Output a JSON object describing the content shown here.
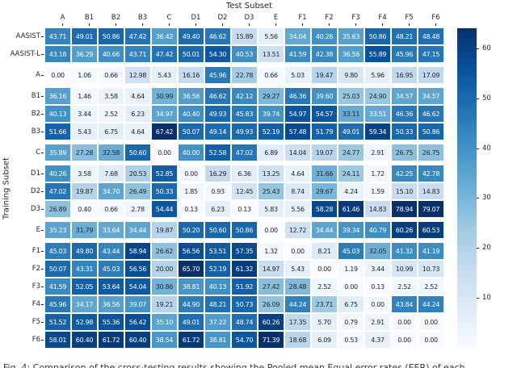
{
  "title": "Test Subset",
  "ylabel": "Training Subset",
  "caption_fragment": "Fig. 4: Comparison of the cross-testing results showing the Pooled mean Equal error rates (EER) of each",
  "colors": {
    "background": "#ffffff",
    "text_dark": "#262626",
    "text_light": "#ffffff",
    "colormap_name": "Blues",
    "cmap_stops": [
      [
        0.0,
        "#f7fbff"
      ],
      [
        0.125,
        "#deebf7"
      ],
      [
        0.25,
        "#c6dbef"
      ],
      [
        0.375,
        "#9ecae1"
      ],
      [
        0.5,
        "#6baed6"
      ],
      [
        0.625,
        "#4292c6"
      ],
      [
        0.75,
        "#2171b5"
      ],
      [
        0.875,
        "#08519c"
      ],
      [
        1.0,
        "#08306b"
      ]
    ]
  },
  "chart_data": {
    "type": "heatmap",
    "title": "Test Subset",
    "xlabel": "",
    "ylabel": "Training Subset",
    "x_categories": [
      "A",
      "B1",
      "B2",
      "B3",
      "C",
      "D1",
      "D2",
      "D3",
      "E",
      "F1",
      "F2",
      "F3",
      "F4",
      "F5",
      "F6"
    ],
    "y_categories": [
      "AASIST",
      "AASIST-L",
      "A",
      "B1",
      "B2",
      "B3",
      "C",
      "D1",
      "D2",
      "D3",
      "E",
      "F1",
      "F2",
      "F3",
      "F4",
      "F5",
      "F6"
    ],
    "row_groups": [
      2,
      1,
      3,
      1,
      3,
      1,
      6
    ],
    "values": [
      [
        43.71,
        49.01,
        50.86,
        47.42,
        36.42,
        49.4,
        46.62,
        15.89,
        5.56,
        34.04,
        40.26,
        35.63,
        50.86,
        48.21,
        48.48
      ],
      [
        43.18,
        36.29,
        40.66,
        43.71,
        47.42,
        50.01,
        54.3,
        40.53,
        13.51,
        41.59,
        42.38,
        36.56,
        55.89,
        45.96,
        47.15
      ],
      [
        0.0,
        1.06,
        0.66,
        12.98,
        5.43,
        16.16,
        45.96,
        22.78,
        0.66,
        5.03,
        19.47,
        9.8,
        5.96,
        16.95,
        17.09
      ],
      [
        36.16,
        1.46,
        3.58,
        4.64,
        30.99,
        36.56,
        46.62,
        42.12,
        29.27,
        46.36,
        39.6,
        25.03,
        24.9,
        34.57,
        34.57
      ],
      [
        40.13,
        3.44,
        2.52,
        6.23,
        34.97,
        40.4,
        49.93,
        45.83,
        39.74,
        54.97,
        54.57,
        33.11,
        33.51,
        46.36,
        46.62
      ],
      [
        51.66,
        5.43,
        6.75,
        4.64,
        67.42,
        50.07,
        49.14,
        49.93,
        52.19,
        57.48,
        51.79,
        49.01,
        59.34,
        50.33,
        50.86
      ],
      [
        35.89,
        27.28,
        32.58,
        50.6,
        0.0,
        40.0,
        52.58,
        47.02,
        6.89,
        14.04,
        19.07,
        24.77,
        2.91,
        26.75,
        26.75
      ],
      [
        40.26,
        3.58,
        7.68,
        20.53,
        52.85,
        0.0,
        16.29,
        6.36,
        13.25,
        4.64,
        31.66,
        24.11,
        1.72,
        42.25,
        42.78
      ],
      [
        47.02,
        19.87,
        34.7,
        26.49,
        50.33,
        1.85,
        0.93,
        12.45,
        25.43,
        8.74,
        29.67,
        4.24,
        1.59,
        15.1,
        14.83
      ],
      [
        26.89,
        0.4,
        0.66,
        2.78,
        54.44,
        0.13,
        6.23,
        0.13,
        5.83,
        5.56,
        58.28,
        61.46,
        14.83,
        78.94,
        79.07
      ],
      [
        35.23,
        31.79,
        33.64,
        34.44,
        19.87,
        50.2,
        50.6,
        50.86,
        0.0,
        12.72,
        34.44,
        39.34,
        40.79,
        60.26,
        60.53
      ],
      [
        45.03,
        49.8,
        43.44,
        58.94,
        26.62,
        56.56,
        53.51,
        57.35,
        1.32,
        0.0,
        8.21,
        45.03,
        32.05,
        41.32,
        41.19
      ],
      [
        50.07,
        43.31,
        45.03,
        56.56,
        20.0,
        65.7,
        52.19,
        61.32,
        14.97,
        5.43,
        0.0,
        1.19,
        3.44,
        10.99,
        10.73
      ],
      [
        41.59,
        52.05,
        53.64,
        54.04,
        30.86,
        38.81,
        40.13,
        51.92,
        27.42,
        28.48,
        2.52,
        0.0,
        0.13,
        2.52,
        2.52
      ],
      [
        45.96,
        34.17,
        36.56,
        39.07,
        19.21,
        44.9,
        48.21,
        50.73,
        26.09,
        44.24,
        23.71,
        6.75,
        0.0,
        43.84,
        44.24
      ],
      [
        51.52,
        52.98,
        55.36,
        56.42,
        35.1,
        49.01,
        37.22,
        48.74,
        60.26,
        17.35,
        5.7,
        0.79,
        2.91,
        0.0,
        0.0
      ],
      [
        58.01,
        60.4,
        61.72,
        60.4,
        38.54,
        61.72,
        38.81,
        54.7,
        71.39,
        18.68,
        6.09,
        0.53,
        4.37,
        0.0,
        0.0
      ]
    ],
    "vmin": 0,
    "vmax": 64,
    "annotations": true,
    "annotation_format": ".2f",
    "grid": false,
    "colorbar": {
      "position": "right",
      "ticks": [
        10,
        20,
        30,
        40,
        50,
        60
      ]
    }
  }
}
